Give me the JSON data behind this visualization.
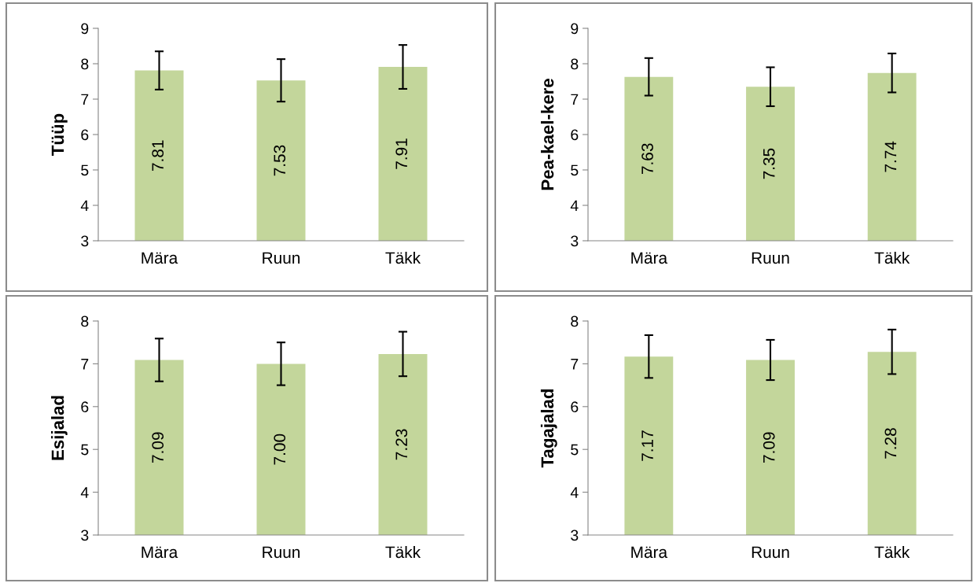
{
  "chart_data": [
    {
      "type": "bar",
      "ylabel": "Tüüp",
      "categories": [
        "Mära",
        "Ruun",
        "Täkk"
      ],
      "values": [
        7.81,
        7.53,
        7.91
      ],
      "value_labels": [
        "7.81",
        "7.53",
        "7.91"
      ],
      "errors": [
        0.54,
        0.6,
        0.62
      ],
      "color": "#c3d69b",
      "ylim": [
        3,
        9
      ],
      "yticks": [
        3,
        4,
        5,
        6,
        7,
        8,
        9
      ],
      "grid": false
    },
    {
      "type": "bar",
      "ylabel": "Pea-kael-kere",
      "categories": [
        "Mära",
        "Ruun",
        "Täkk"
      ],
      "values": [
        7.63,
        7.35,
        7.74
      ],
      "value_labels": [
        "7.63",
        "7.35",
        "7.74"
      ],
      "errors": [
        0.53,
        0.55,
        0.55
      ],
      "color": "#c3d69b",
      "ylim": [
        3,
        9
      ],
      "yticks": [
        3,
        4,
        5,
        6,
        7,
        8,
        9
      ],
      "grid": false
    },
    {
      "type": "bar",
      "ylabel": "Esijalad",
      "categories": [
        "Mära",
        "Ruun",
        "Täkk"
      ],
      "values": [
        7.09,
        7.0,
        7.23
      ],
      "value_labels": [
        "7.09",
        "7.00",
        "7.23"
      ],
      "errors": [
        0.5,
        0.5,
        0.52
      ],
      "color": "#c3d69b",
      "ylim": [
        3,
        8
      ],
      "yticks": [
        3,
        4,
        5,
        6,
        7,
        8
      ],
      "grid": false
    },
    {
      "type": "bar",
      "ylabel": "Tagajalad",
      "categories": [
        "Mära",
        "Ruun",
        "Täkk"
      ],
      "values": [
        7.17,
        7.09,
        7.28
      ],
      "value_labels": [
        "7.17",
        "7.09",
        "7.28"
      ],
      "errors": [
        0.5,
        0.47,
        0.52
      ],
      "color": "#c3d69b",
      "ylim": [
        3,
        8
      ],
      "yticks": [
        3,
        4,
        5,
        6,
        7,
        8
      ],
      "grid": false
    }
  ]
}
